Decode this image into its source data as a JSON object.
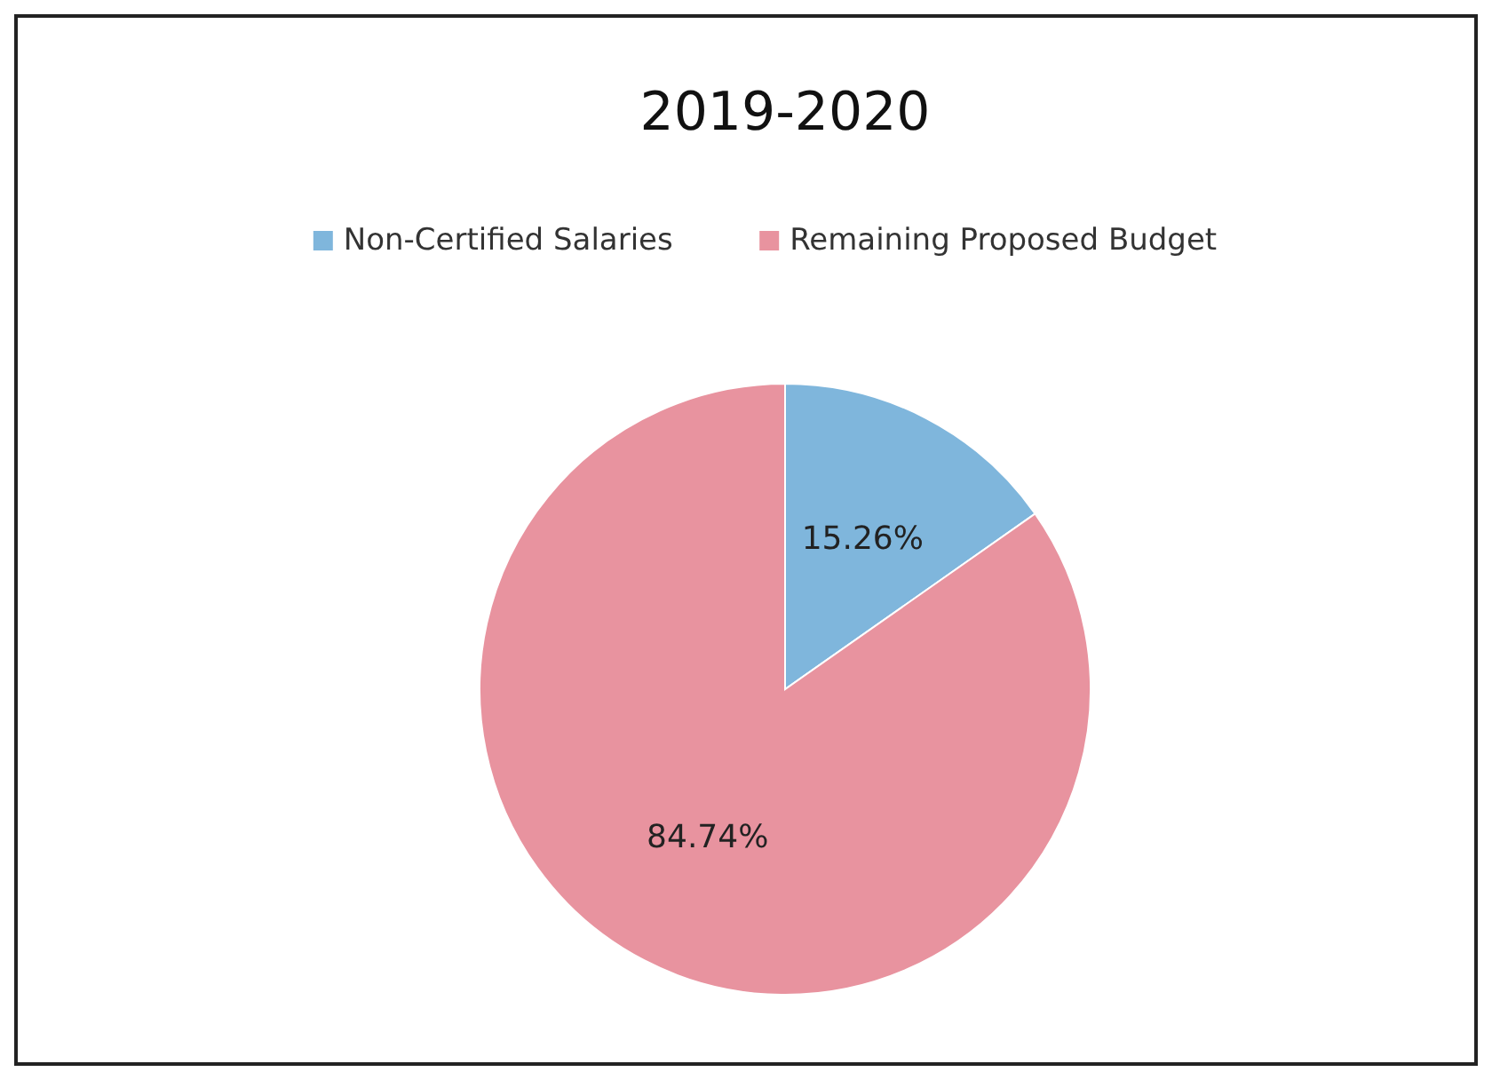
{
  "chart_data": {
    "type": "pie",
    "title": "2019-2020",
    "categories": [
      "Non-Certified Salaries",
      "Remaining Proposed Budget"
    ],
    "values": [
      15.26,
      84.74
    ],
    "colors": [
      "#7fb6dc",
      "#e8939f"
    ],
    "value_labels": [
      "15.26%",
      "84.74%"
    ],
    "legend": "top"
  }
}
